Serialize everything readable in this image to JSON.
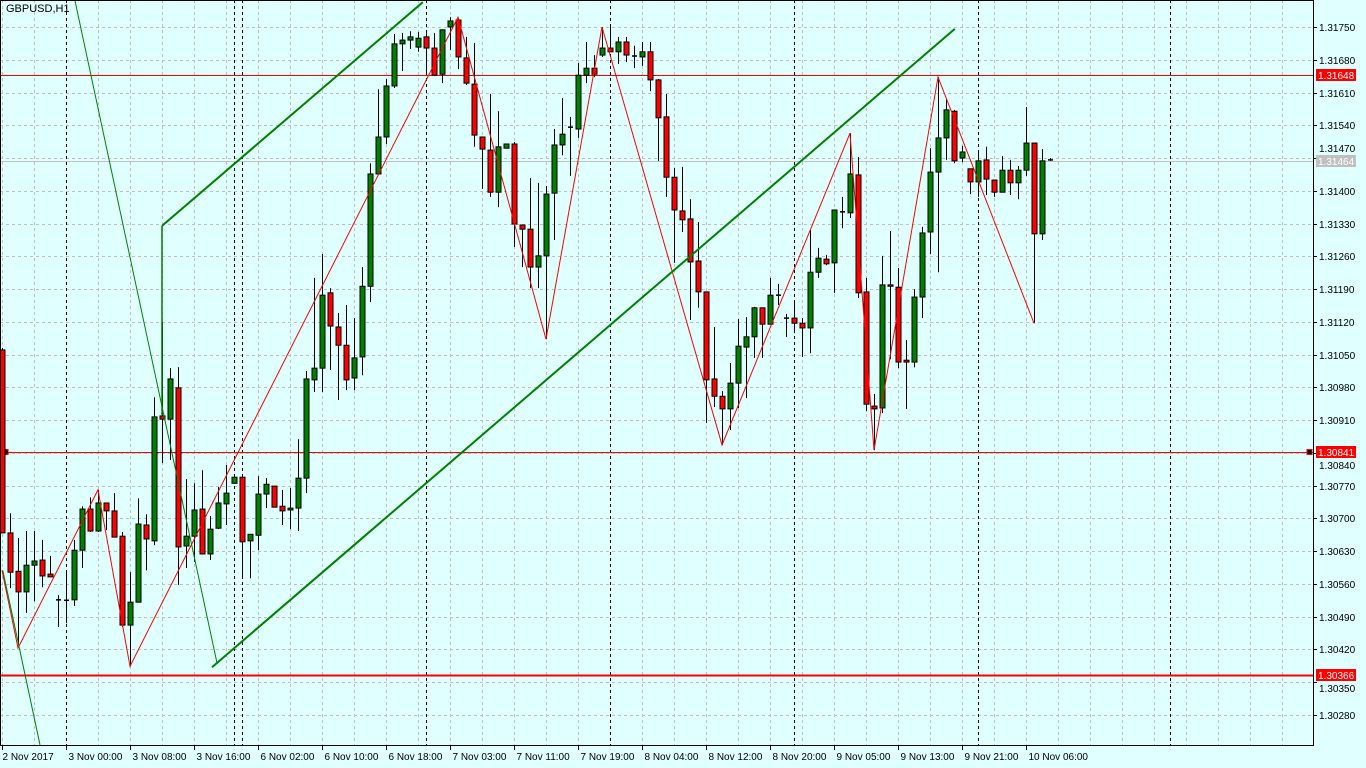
{
  "window": {
    "title": "GBPUSD,H1"
  },
  "colors": {
    "background": "#e0ffff",
    "grid": "#c0c0c0",
    "bull": "#008000",
    "bear": "#ff0000",
    "foreground": "#000000",
    "trendline": "#008000",
    "zigzag": "#ff0000",
    "hline": "#ff0000",
    "bid_line": "#c0c0c0"
  },
  "chart_data": {
    "type": "candlestick",
    "symbol": "GBPUSD",
    "timeframe": "H1",
    "grid": true,
    "ylim": [
      1.3019,
      1.31808
    ],
    "yticks": [
      "1.31750",
      "1.31680",
      "1.31610",
      "1.31540",
      "1.31470",
      "1.31400",
      "1.31330",
      "1.31260",
      "1.31190",
      "1.31120",
      "1.31050",
      "1.30980",
      "1.30910",
      "1.30840",
      "1.30770",
      "1.30700",
      "1.30630",
      "1.30560",
      "1.30490",
      "1.30420",
      "1.30350",
      "1.30280"
    ],
    "xticks": [
      {
        "index": 0,
        "label": "2 Nov 2017"
      },
      {
        "index": 8,
        "label": "3 Nov 00:00"
      },
      {
        "index": 16,
        "label": "3 Nov 08:00"
      },
      {
        "index": 24,
        "label": "3 Nov 16:00"
      },
      {
        "index": 32,
        "label": "6 Nov 02:00"
      },
      {
        "index": 40,
        "label": "6 Nov 10:00"
      },
      {
        "index": 48,
        "label": "6 Nov 18:00"
      },
      {
        "index": 56,
        "label": "7 Nov 03:00"
      },
      {
        "index": 64,
        "label": "7 Nov 11:00"
      },
      {
        "index": 72,
        "label": "7 Nov 19:00"
      },
      {
        "index": 80,
        "label": "8 Nov 04:00"
      },
      {
        "index": 88,
        "label": "8 Nov 12:00"
      },
      {
        "index": 96,
        "label": "8 Nov 20:00"
      },
      {
        "index": 104,
        "label": "9 Nov 05:00"
      },
      {
        "index": 112,
        "label": "9 Nov 13:00"
      },
      {
        "index": 120,
        "label": "9 Nov 21:00"
      },
      {
        "index": 128,
        "label": "10 Nov 06:00"
      }
    ],
    "period_separators": [
      8,
      29,
      30,
      53,
      76,
      99,
      122,
      146
    ],
    "ohlc": [
      [
        1.3106,
        1.31064,
        1.30669,
        1.30669
      ],
      [
        1.30669,
        1.30711,
        1.30551,
        1.30585
      ],
      [
        1.30587,
        1.30658,
        1.30429,
        1.30543
      ],
      [
        1.30543,
        1.30673,
        1.30498,
        1.306
      ],
      [
        1.306,
        1.30673,
        1.30523,
        1.30609
      ],
      [
        1.30611,
        1.30654,
        1.30553,
        1.30577
      ],
      [
        1.30581,
        1.3062,
        1.30575,
        1.30575
      ],
      [
        1.30526,
        1.30536,
        1.30468,
        1.30526
      ],
      [
        1.30523,
        1.30585,
        1.30476,
        1.30525
      ],
      [
        1.30526,
        1.30654,
        1.30513,
        1.30632
      ],
      [
        1.30632,
        1.30726,
        1.30594,
        1.3072
      ],
      [
        1.3072,
        1.30745,
        1.30671,
        1.30673
      ],
      [
        1.30673,
        1.30761,
        1.30671,
        1.30733
      ],
      [
        1.30733,
        1.30733,
        1.30675,
        1.30716
      ],
      [
        1.30716,
        1.30754,
        1.3066,
        1.3066
      ],
      [
        1.30662,
        1.30671,
        1.30468,
        1.30472
      ],
      [
        1.30472,
        1.30585,
        1.30384,
        1.30521
      ],
      [
        1.30521,
        1.30743,
        1.30521,
        1.30688
      ],
      [
        1.30686,
        1.30709,
        1.30589,
        1.30656
      ],
      [
        1.30652,
        1.30959,
        1.30643,
        1.30917
      ],
      [
        1.30919,
        1.3112,
        1.30818,
        1.30912
      ],
      [
        1.30912,
        1.31021,
        1.30825,
        1.30998
      ],
      [
        1.30979,
        1.31023,
        1.30558,
        1.30639
      ],
      [
        1.30641,
        1.30784,
        1.30594,
        1.30662
      ],
      [
        1.30662,
        1.30775,
        1.30607,
        1.30718
      ],
      [
        1.3072,
        1.30803,
        1.30624,
        1.30624
      ],
      [
        1.30624,
        1.30705,
        1.30611,
        1.30677
      ],
      [
        1.30679,
        1.30767,
        1.30677,
        1.30733
      ],
      [
        1.30731,
        1.30814,
        1.30686,
        1.30754
      ],
      [
        1.30775,
        1.30788,
        1.30775,
        1.30788
      ],
      [
        1.30788,
        1.30788,
        1.30572,
        1.3065
      ],
      [
        1.30652,
        1.30666,
        1.30572,
        1.30666
      ],
      [
        1.30664,
        1.3079,
        1.30632,
        1.30752
      ],
      [
        1.30752,
        1.30786,
        1.30722,
        1.30773
      ],
      [
        1.30769,
        1.30769,
        1.30724,
        1.30724
      ],
      [
        1.30726,
        1.30761,
        1.30686,
        1.30716
      ],
      [
        1.30718,
        1.30765,
        1.30677,
        1.30722
      ],
      [
        1.30722,
        1.30869,
        1.30673,
        1.30786
      ],
      [
        1.30786,
        1.31015,
        1.30754,
        1.30998
      ],
      [
        1.30996,
        1.31214,
        1.3097,
        1.31021
      ],
      [
        1.31021,
        1.31265,
        1.3097,
        1.31177
      ],
      [
        1.31182,
        1.31192,
        1.31017,
        1.31111
      ],
      [
        1.31109,
        1.31139,
        1.30953,
        1.3107
      ],
      [
        1.3107,
        1.31156,
        1.30974,
        1.30996
      ],
      [
        1.31,
        1.31128,
        1.30974,
        1.31043
      ],
      [
        1.31045,
        1.31237,
        1.31006,
        1.31196
      ],
      [
        1.31196,
        1.31459,
        1.31162,
        1.31436
      ],
      [
        1.31436,
        1.31617,
        1.31436,
        1.31515
      ],
      [
        1.31515,
        1.31639,
        1.315,
        1.31624
      ],
      [
        1.31624,
        1.31735,
        1.3162,
        1.31714
      ],
      [
        1.31714,
        1.31737,
        1.31656,
        1.31722
      ],
      [
        1.31722,
        1.31741,
        1.31703,
        1.31729
      ],
      [
        1.31707,
        1.31739,
        1.31697,
        1.31726
      ],
      [
        1.31729,
        1.31737,
        1.31652,
        1.31705
      ],
      [
        1.31705,
        1.31737,
        1.31645,
        1.31647
      ],
      [
        1.31649,
        1.31744,
        1.3163,
        1.31744
      ],
      [
        1.3175,
        1.31771,
        1.31701,
        1.31763
      ],
      [
        1.31765,
        1.31769,
        1.3166,
        1.31686
      ],
      [
        1.31684,
        1.31729,
        1.31626,
        1.3163
      ],
      [
        1.31628,
        1.31716,
        1.31494,
        1.31519
      ],
      [
        1.31515,
        1.31515,
        1.31404,
        1.31489
      ],
      [
        1.31487,
        1.31607,
        1.31387,
        1.31397
      ],
      [
        1.31397,
        1.3157,
        1.31365,
        1.31494
      ],
      [
        1.31491,
        1.315,
        1.31491,
        1.315
      ],
      [
        1.315,
        1.31504,
        1.3128,
        1.31329
      ],
      [
        1.31327,
        1.31327,
        1.31237,
        1.31318
      ],
      [
        1.31318,
        1.31427,
        1.31192,
        1.31237
      ],
      [
        1.31237,
        1.31417,
        1.31192,
        1.31261
      ],
      [
        1.31261,
        1.3141,
        1.31083,
        1.31393
      ],
      [
        1.31395,
        1.31532,
        1.31295,
        1.31498
      ],
      [
        1.31498,
        1.31598,
        1.31476,
        1.31521
      ],
      [
        1.31534,
        1.31558,
        1.31432,
        1.31536
      ],
      [
        1.31532,
        1.31673,
        1.31513,
        1.31647
      ],
      [
        1.31647,
        1.31718,
        1.3163,
        1.31662
      ],
      [
        1.31662,
        1.3169,
        1.31643,
        1.31649
      ],
      [
        1.3169,
        1.3175,
        1.31686,
        1.31705
      ],
      [
        1.31705,
        1.3175,
        1.31697,
        1.31697
      ],
      [
        1.31697,
        1.31729,
        1.31671,
        1.31718
      ],
      [
        1.31718,
        1.31729,
        1.31675,
        1.3169
      ],
      [
        1.31686,
        1.3171,
        1.31662,
        1.31688
      ],
      [
        1.31686,
        1.31718,
        1.31667,
        1.31697
      ],
      [
        1.31697,
        1.31718,
        1.31613,
        1.31637
      ],
      [
        1.31637,
        1.31639,
        1.31464,
        1.31556
      ],
      [
        1.31558,
        1.31607,
        1.31387,
        1.31429
      ],
      [
        1.31429,
        1.31449,
        1.31246,
        1.31359
      ],
      [
        1.31357,
        1.31451,
        1.31312,
        1.31338
      ],
      [
        1.3134,
        1.31382,
        1.31124,
        1.31248
      ],
      [
        1.3125,
        1.31333,
        1.3115,
        1.31184
      ],
      [
        1.31184,
        1.31184,
        1.30904,
        1.30996
      ],
      [
        1.30998,
        1.31109,
        1.30938,
        1.30961
      ],
      [
        1.30961,
        1.30972,
        1.30857,
        1.30934
      ],
      [
        1.30934,
        1.31032,
        1.30889,
        1.30989
      ],
      [
        1.30989,
        1.31126,
        1.30936,
        1.31068
      ],
      [
        1.31066,
        1.3113,
        1.30957,
        1.31088
      ],
      [
        1.31088,
        1.31152,
        1.31043,
        1.3115
      ],
      [
        1.3115,
        1.3115,
        1.31043,
        1.31115
      ],
      [
        1.31115,
        1.31214,
        1.31115,
        1.31177
      ],
      [
        1.31175,
        1.31201,
        1.31156,
        1.31177
      ],
      [
        1.31126,
        1.31137,
        1.31088,
        1.31128
      ],
      [
        1.31128,
        1.31162,
        1.31096,
        1.31117
      ],
      [
        1.31117,
        1.31128,
        1.31045,
        1.31107
      ],
      [
        1.31107,
        1.31316,
        1.31053,
        1.31226
      ],
      [
        1.31226,
        1.31278,
        1.31214,
        1.31256
      ],
      [
        1.31254,
        1.31263,
        1.31241,
        1.31244
      ],
      [
        1.31246,
        1.31359,
        1.31182,
        1.31359
      ],
      [
        1.31353,
        1.31387,
        1.3132,
        1.31355
      ],
      [
        1.31353,
        1.31523,
        1.31342,
        1.31436
      ],
      [
        1.31434,
        1.31472,
        1.31171,
        1.31182
      ],
      [
        1.31184,
        1.31214,
        1.30929,
        1.30944
      ],
      [
        1.3094,
        1.30966,
        1.30846,
        1.30934
      ],
      [
        1.30936,
        1.31261,
        1.30925,
        1.31199
      ],
      [
        1.31199,
        1.31314,
        1.3104,
        1.31196
      ],
      [
        1.31194,
        1.31235,
        1.31021,
        1.31034
      ],
      [
        1.31038,
        1.31081,
        1.30934,
        1.31034
      ],
      [
        1.31034,
        1.3119,
        1.31023,
        1.31173
      ],
      [
        1.31173,
        1.31323,
        1.31128,
        1.3131
      ],
      [
        1.31312,
        1.31491,
        1.31265,
        1.3144
      ],
      [
        1.3144,
        1.31643,
        1.31226,
        1.31513
      ],
      [
        1.31513,
        1.31596,
        1.31466,
        1.31573
      ],
      [
        1.3157,
        1.31573,
        1.31459,
        1.31464
      ],
      [
        1.3147,
        1.31496,
        1.31461,
        1.31483
      ],
      [
        1.31447,
        1.31447,
        1.31393,
        1.31419
      ],
      [
        1.31419,
        1.31483,
        1.31387,
        1.31464
      ],
      [
        1.31466,
        1.31494,
        1.31391,
        1.31425
      ],
      [
        1.31423,
        1.31423,
        1.31387,
        1.31397
      ],
      [
        1.31397,
        1.31474,
        1.31397,
        1.31444
      ],
      [
        1.31444,
        1.31466,
        1.31391,
        1.31417
      ],
      [
        1.31417,
        1.31453,
        1.31382,
        1.31444
      ],
      [
        1.31444,
        1.31579,
        1.31432,
        1.31502
      ],
      [
        1.31502,
        1.31502,
        1.31117,
        1.31308
      ],
      [
        1.31308,
        1.31489,
        1.31295,
        1.31464
      ],
      [
        1.31466,
        1.3147,
        1.31464,
        1.31464
      ]
    ],
    "zigzag": [
      [
        0,
        1.30589
      ],
      [
        2,
        1.30423
      ],
      [
        12,
        1.30761
      ],
      [
        16,
        1.30384
      ],
      [
        57,
        1.31771
      ],
      [
        68,
        1.31083
      ],
      [
        75,
        1.3175
      ],
      [
        90,
        1.30857
      ],
      [
        106,
        1.31523
      ],
      [
        109,
        1.30846
      ],
      [
        117,
        1.31643
      ],
      [
        129,
        1.31117
      ]
    ],
    "trendlines": [
      {
        "width": 2,
        "points": [
          [
            20,
            1.31325
          ],
          [
            52.6,
            1.31803
          ]
        ]
      },
      {
        "width": 1.5,
        "points": [
          [
            20,
            1.31325
          ],
          [
            20,
            1.30921
          ]
        ]
      },
      {
        "width": 2,
        "points": [
          [
            26.25,
            1.30382
          ],
          [
            119.1,
            1.31746
          ]
        ]
      },
      {
        "width": 1,
        "points": [
          [
            9.1,
            1.31808
          ],
          [
            26.9,
            1.30389
          ]
        ]
      },
      {
        "width": 1,
        "points": [
          [
            0.1,
            1.30589
          ],
          [
            4.75,
            1.30216
          ]
        ]
      }
    ],
    "horizontal_lines": [
      {
        "price": 1.31648,
        "label": "1.31648",
        "width": 1
      },
      {
        "price": 1.30841,
        "label": "1.30841",
        "width": 1,
        "markers": true
      },
      {
        "price": 1.30366,
        "label": "1.30366",
        "width": 2
      }
    ],
    "bid": {
      "price": 1.31464,
      "label": "1.31464"
    }
  }
}
